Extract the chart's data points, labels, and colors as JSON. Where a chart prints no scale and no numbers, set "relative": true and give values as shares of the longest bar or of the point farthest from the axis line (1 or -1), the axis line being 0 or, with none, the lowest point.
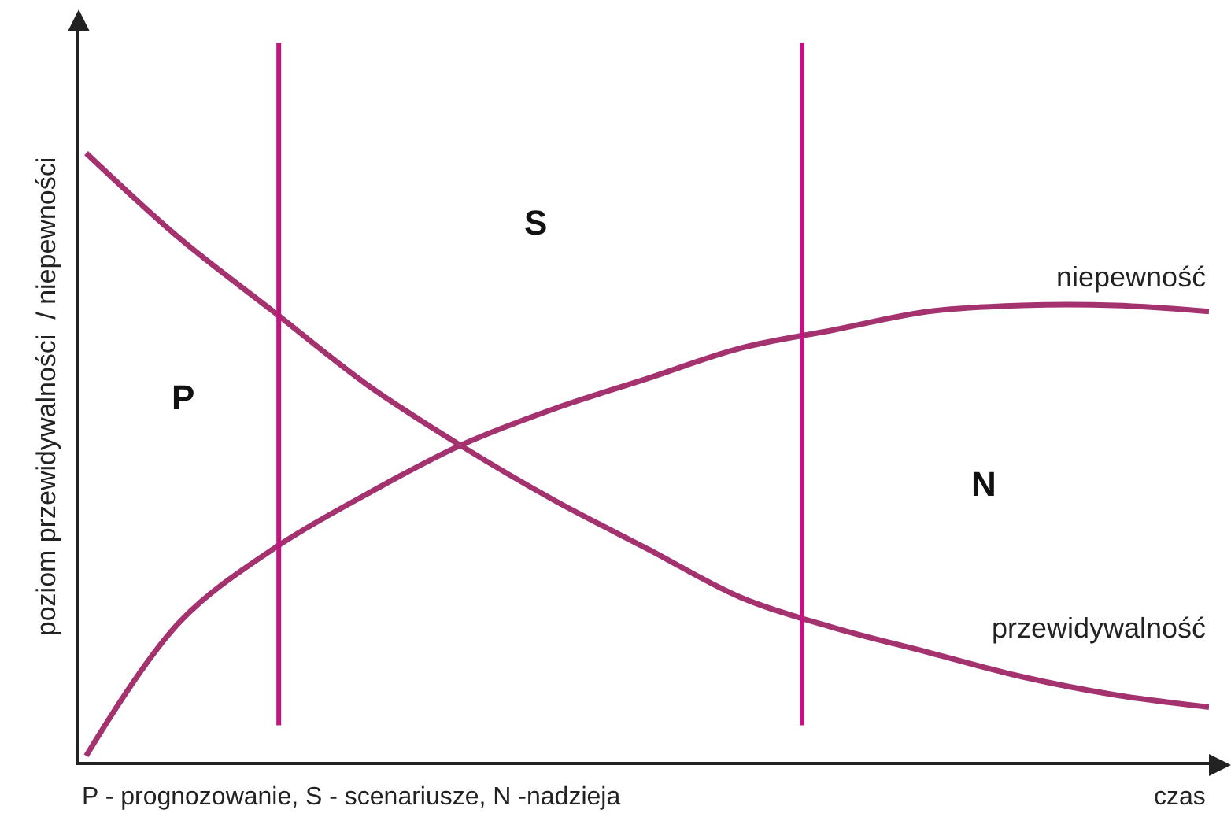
{
  "chart_data": {
    "type": "line",
    "relative": true,
    "xlabel": "czas",
    "ylabel": "poziom przewidywalności  / niepewności",
    "categories": [
      null,
      null,
      null,
      null,
      null,
      null,
      null,
      null,
      null,
      null,
      null,
      null,
      null
    ],
    "series": [
      {
        "name": "przewidywalność",
        "color": "#a3326f",
        "values": [
          1,
          0.86,
          0.74,
          0.62,
          0.52,
          0.43,
          0.35,
          0.27,
          0.22,
          0.18,
          0.14,
          0.11,
          0.09
        ]
      },
      {
        "name": "niepewność",
        "color": "#a3326f",
        "values": [
          0.01,
          0.23,
          0.35,
          0.44,
          0.52,
          0.58,
          0.63,
          0.68,
          0.71,
          0.74,
          0.75,
          0.75,
          0.74
        ]
      }
    ],
    "annotations": [
      "P",
      "S",
      "N",
      "P - prognozowanie, S - scenariusze, N -nadzieja"
    ],
    "legend": false,
    "grid": false,
    "marker": "none",
    "line_style": "solid"
  }
}
